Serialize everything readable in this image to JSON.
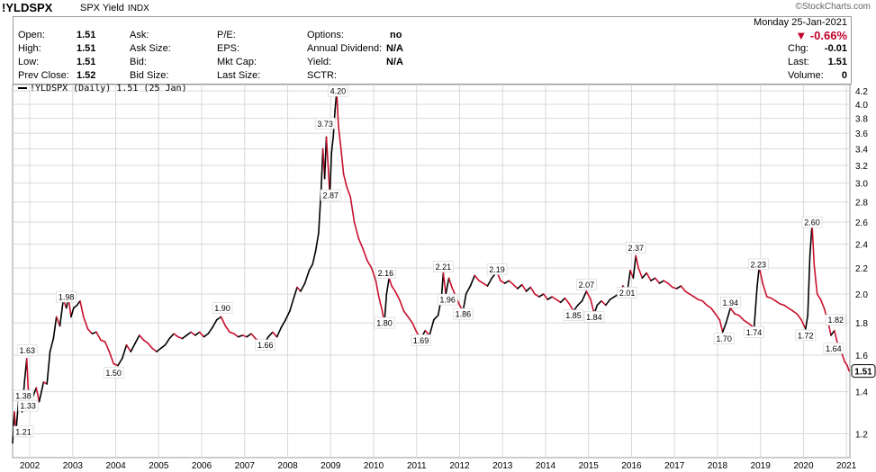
{
  "header": {
    "symbol": "!YLDSPX",
    "name": "SPX Yield",
    "type": "INDX",
    "brand": "©StockCharts.com",
    "date": "Monday  25-Jan-2021"
  },
  "quote": {
    "labels": {
      "open": "Open:",
      "high": "High:",
      "low": "Low:",
      "prev_close": "Prev Close:",
      "ask": "Ask:",
      "ask_size": "Ask Size:",
      "bid": "Bid:",
      "bid_size": "Bid Size:",
      "pe": "P/E:",
      "eps": "EPS:",
      "mkt_cap": "Mkt Cap:",
      "last_size": "Last Size:",
      "options": "Options:",
      "annual_dividend": "Annual Dividend:",
      "yield": "Yield:",
      "sctr": "SCTR:",
      "chg": "Chg:",
      "last": "Last:",
      "volume": "Volume:"
    },
    "values": {
      "open": "1.51",
      "high": "1.51",
      "low": "1.51",
      "prev_close": "1.52",
      "options": "no",
      "annual_dividend": "N/A",
      "yield": "N/A",
      "chg_pct": "▼ -0.66%",
      "chg": "-0.01",
      "last": "1.51",
      "volume": "0"
    }
  },
  "legend": "!YLDSPX (Daily) 1.51 (25 Jan)",
  "colors": {
    "up": "#000000",
    "down": "#c8102e",
    "grid": "#d9d9d9"
  },
  "chart_data": {
    "type": "line",
    "title": "!YLDSPX SPX Yield INDX",
    "scale": "log",
    "ylim": [
      1.1,
      4.3
    ],
    "xlim": [
      2001.6,
      2021.08
    ],
    "grid": true,
    "y_ticks": [
      1.2,
      1.4,
      1.6,
      1.8,
      2.0,
      2.2,
      2.4,
      2.6,
      2.8,
      3.0,
      3.2,
      3.4,
      3.6,
      3.8,
      4.0,
      4.2
    ],
    "x_ticks": [
      2002,
      2003,
      2004,
      2005,
      2006,
      2007,
      2008,
      2009,
      2010,
      2011,
      2012,
      2013,
      2014,
      2015,
      2016,
      2017,
      2018,
      2019,
      2020,
      2021
    ],
    "x_tick_labels": [
      "2002",
      "2003",
      "2004",
      "2005",
      "2006",
      "2007",
      "2008",
      "2009",
      "2010",
      "2011",
      "2012",
      "2013",
      "2014",
      "2015",
      "2016",
      "2017",
      "2018",
      "2019",
      "2020",
      "2021"
    ],
    "last_value": 1.51,
    "annotations": [
      {
        "x": 2001.62,
        "y": 1.38,
        "label": "1.38"
      },
      {
        "x": 2001.66,
        "y": 1.21,
        "label": "1.21"
      },
      {
        "x": 2001.94,
        "y": 1.63,
        "label": "1.63"
      },
      {
        "x": 2001.96,
        "y": 1.33,
        "label": "1.33"
      },
      {
        "x": 2002.85,
        "y": 1.98,
        "label": "1.98"
      },
      {
        "x": 2003.95,
        "y": 1.5,
        "label": "1.50"
      },
      {
        "x": 2006.48,
        "y": 1.9,
        "label": "1.90"
      },
      {
        "x": 2007.48,
        "y": 1.66,
        "label": "1.66"
      },
      {
        "x": 2008.87,
        "y": 3.73,
        "label": "3.73"
      },
      {
        "x": 2009.17,
        "y": 4.2,
        "label": "4.20"
      },
      {
        "x": 2009.0,
        "y": 2.87,
        "label": "2.87"
      },
      {
        "x": 2010.28,
        "y": 2.16,
        "label": "2.16"
      },
      {
        "x": 2010.25,
        "y": 1.8,
        "label": "1.80"
      },
      {
        "x": 2011.1,
        "y": 1.69,
        "label": "1.69"
      },
      {
        "x": 2011.62,
        "y": 2.21,
        "label": "2.21"
      },
      {
        "x": 2011.72,
        "y": 1.96,
        "label": "1.96"
      },
      {
        "x": 2012.08,
        "y": 1.86,
        "label": "1.86"
      },
      {
        "x": 2012.87,
        "y": 2.19,
        "label": "2.19"
      },
      {
        "x": 2014.95,
        "y": 2.07,
        "label": "2.07"
      },
      {
        "x": 2014.65,
        "y": 1.85,
        "label": "1.85"
      },
      {
        "x": 2015.13,
        "y": 1.84,
        "label": "1.84"
      },
      {
        "x": 2015.9,
        "y": 2.01,
        "label": "2.01"
      },
      {
        "x": 2016.1,
        "y": 2.37,
        "label": "2.37"
      },
      {
        "x": 2018.3,
        "y": 1.94,
        "label": "1.94"
      },
      {
        "x": 2018.15,
        "y": 1.7,
        "label": "1.70"
      },
      {
        "x": 2018.95,
        "y": 2.23,
        "label": "2.23"
      },
      {
        "x": 2018.85,
        "y": 1.74,
        "label": "1.74"
      },
      {
        "x": 2020.2,
        "y": 2.6,
        "label": "2.60"
      },
      {
        "x": 2020.05,
        "y": 1.72,
        "label": "1.72"
      },
      {
        "x": 2020.75,
        "y": 1.82,
        "label": "1.82"
      },
      {
        "x": 2020.7,
        "y": 1.64,
        "label": "1.64"
      }
    ],
    "series": [
      {
        "values": [
          [
            2001.6,
            1.16
          ],
          [
            2001.64,
            1.3
          ],
          [
            2001.68,
            1.21
          ],
          [
            2001.74,
            1.36
          ],
          [
            2001.82,
            1.3
          ],
          [
            2001.88,
            1.46
          ],
          [
            2001.93,
            1.58
          ],
          [
            2001.97,
            1.38
          ],
          [
            2002.05,
            1.36
          ],
          [
            2002.15,
            1.42
          ],
          [
            2002.22,
            1.35
          ],
          [
            2002.32,
            1.45
          ],
          [
            2002.4,
            1.44
          ],
          [
            2002.47,
            1.62
          ],
          [
            2002.55,
            1.7
          ],
          [
            2002.62,
            1.84
          ],
          [
            2002.7,
            1.78
          ],
          [
            2002.78,
            1.96
          ],
          [
            2002.85,
            1.9
          ],
          [
            2002.9,
            1.97
          ],
          [
            2002.96,
            1.84
          ],
          [
            2003.02,
            1.9
          ],
          [
            2003.1,
            1.92
          ],
          [
            2003.17,
            1.95
          ],
          [
            2003.25,
            1.84
          ],
          [
            2003.35,
            1.76
          ],
          [
            2003.45,
            1.73
          ],
          [
            2003.55,
            1.74
          ],
          [
            2003.65,
            1.69
          ],
          [
            2003.75,
            1.68
          ],
          [
            2003.85,
            1.62
          ],
          [
            2003.95,
            1.55
          ],
          [
            2004.05,
            1.54
          ],
          [
            2004.15,
            1.58
          ],
          [
            2004.25,
            1.66
          ],
          [
            2004.35,
            1.62
          ],
          [
            2004.45,
            1.67
          ],
          [
            2004.55,
            1.72
          ],
          [
            2004.65,
            1.69
          ],
          [
            2004.75,
            1.67
          ],
          [
            2004.85,
            1.64
          ],
          [
            2004.95,
            1.62
          ],
          [
            2005.05,
            1.64
          ],
          [
            2005.15,
            1.66
          ],
          [
            2005.25,
            1.7
          ],
          [
            2005.35,
            1.73
          ],
          [
            2005.45,
            1.71
          ],
          [
            2005.55,
            1.7
          ],
          [
            2005.65,
            1.72
          ],
          [
            2005.75,
            1.74
          ],
          [
            2005.85,
            1.72
          ],
          [
            2005.95,
            1.74
          ],
          [
            2006.05,
            1.71
          ],
          [
            2006.15,
            1.73
          ],
          [
            2006.25,
            1.77
          ],
          [
            2006.35,
            1.82
          ],
          [
            2006.45,
            1.84
          ],
          [
            2006.55,
            1.78
          ],
          [
            2006.65,
            1.74
          ],
          [
            2006.75,
            1.73
          ],
          [
            2006.85,
            1.71
          ],
          [
            2006.95,
            1.72
          ],
          [
            2007.05,
            1.71
          ],
          [
            2007.15,
            1.73
          ],
          [
            2007.25,
            1.7
          ],
          [
            2007.35,
            1.68
          ],
          [
            2007.45,
            1.67
          ],
          [
            2007.55,
            1.71
          ],
          [
            2007.65,
            1.74
          ],
          [
            2007.75,
            1.71
          ],
          [
            2007.85,
            1.77
          ],
          [
            2007.95,
            1.82
          ],
          [
            2008.05,
            1.88
          ],
          [
            2008.15,
            1.98
          ],
          [
            2008.22,
            2.05
          ],
          [
            2008.3,
            2.02
          ],
          [
            2008.4,
            2.08
          ],
          [
            2008.5,
            2.18
          ],
          [
            2008.58,
            2.23
          ],
          [
            2008.65,
            2.34
          ],
          [
            2008.72,
            2.5
          ],
          [
            2008.78,
            2.95
          ],
          [
            2008.82,
            3.4
          ],
          [
            2008.86,
            3.05
          ],
          [
            2008.9,
            3.55
          ],
          [
            2008.94,
            3.2
          ],
          [
            2008.98,
            2.87
          ],
          [
            2009.02,
            3.35
          ],
          [
            2009.06,
            3.55
          ],
          [
            2009.1,
            3.9
          ],
          [
            2009.14,
            4.2
          ],
          [
            2009.18,
            3.7
          ],
          [
            2009.24,
            3.4
          ],
          [
            2009.3,
            3.1
          ],
          [
            2009.38,
            2.95
          ],
          [
            2009.46,
            2.85
          ],
          [
            2009.55,
            2.6
          ],
          [
            2009.65,
            2.45
          ],
          [
            2009.75,
            2.36
          ],
          [
            2009.85,
            2.26
          ],
          [
            2009.95,
            2.2
          ],
          [
            2010.05,
            2.1
          ],
          [
            2010.12,
            1.98
          ],
          [
            2010.2,
            1.88
          ],
          [
            2010.25,
            1.8
          ],
          [
            2010.3,
            2.0
          ],
          [
            2010.36,
            2.12
          ],
          [
            2010.42,
            2.06
          ],
          [
            2010.5,
            2.02
          ],
          [
            2010.6,
            1.96
          ],
          [
            2010.7,
            1.88
          ],
          [
            2010.8,
            1.84
          ],
          [
            2010.9,
            1.8
          ],
          [
            2011.0,
            1.74
          ],
          [
            2011.1,
            1.7
          ],
          [
            2011.2,
            1.75
          ],
          [
            2011.3,
            1.72
          ],
          [
            2011.4,
            1.82
          ],
          [
            2011.5,
            1.85
          ],
          [
            2011.58,
            1.98
          ],
          [
            2011.62,
            2.16
          ],
          [
            2011.68,
            2.0
          ],
          [
            2011.75,
            2.12
          ],
          [
            2011.82,
            2.05
          ],
          [
            2011.9,
            1.99
          ],
          [
            2012.0,
            1.92
          ],
          [
            2012.08,
            1.88
          ],
          [
            2012.15,
            2.0
          ],
          [
            2012.25,
            2.06
          ],
          [
            2012.35,
            2.14
          ],
          [
            2012.45,
            2.1
          ],
          [
            2012.55,
            2.08
          ],
          [
            2012.65,
            2.06
          ],
          [
            2012.75,
            2.12
          ],
          [
            2012.87,
            2.17
          ],
          [
            2012.95,
            2.1
          ],
          [
            2013.05,
            2.08
          ],
          [
            2013.15,
            2.1
          ],
          [
            2013.25,
            2.07
          ],
          [
            2013.35,
            2.04
          ],
          [
            2013.45,
            2.07
          ],
          [
            2013.55,
            2.02
          ],
          [
            2013.65,
            2.05
          ],
          [
            2013.75,
            2.0
          ],
          [
            2013.85,
            1.98
          ],
          [
            2013.95,
            2.0
          ],
          [
            2014.05,
            1.96
          ],
          [
            2014.15,
            1.98
          ],
          [
            2014.25,
            1.96
          ],
          [
            2014.35,
            1.94
          ],
          [
            2014.45,
            1.97
          ],
          [
            2014.55,
            1.93
          ],
          [
            2014.65,
            1.88
          ],
          [
            2014.75,
            1.92
          ],
          [
            2014.85,
            1.95
          ],
          [
            2014.95,
            2.02
          ],
          [
            2015.05,
            1.96
          ],
          [
            2015.13,
            1.86
          ],
          [
            2015.2,
            1.92
          ],
          [
            2015.3,
            1.95
          ],
          [
            2015.4,
            1.92
          ],
          [
            2015.5,
            1.96
          ],
          [
            2015.6,
            1.98
          ],
          [
            2015.7,
            2.0
          ],
          [
            2015.8,
            2.06
          ],
          [
            2015.9,
            2.01
          ],
          [
            2015.97,
            2.18
          ],
          [
            2016.04,
            2.12
          ],
          [
            2016.1,
            2.3
          ],
          [
            2016.16,
            2.2
          ],
          [
            2016.25,
            2.12
          ],
          [
            2016.35,
            2.16
          ],
          [
            2016.45,
            2.1
          ],
          [
            2016.55,
            2.12
          ],
          [
            2016.65,
            2.08
          ],
          [
            2016.75,
            2.1
          ],
          [
            2016.85,
            2.08
          ],
          [
            2016.95,
            2.05
          ],
          [
            2017.05,
            2.04
          ],
          [
            2017.15,
            2.06
          ],
          [
            2017.25,
            2.02
          ],
          [
            2017.35,
            2.0
          ],
          [
            2017.45,
            1.98
          ],
          [
            2017.55,
            1.96
          ],
          [
            2017.65,
            1.95
          ],
          [
            2017.75,
            1.92
          ],
          [
            2017.85,
            1.9
          ],
          [
            2017.95,
            1.86
          ],
          [
            2018.05,
            1.82
          ],
          [
            2018.12,
            1.74
          ],
          [
            2018.2,
            1.8
          ],
          [
            2018.3,
            1.9
          ],
          [
            2018.4,
            1.86
          ],
          [
            2018.5,
            1.85
          ],
          [
            2018.6,
            1.82
          ],
          [
            2018.7,
            1.8
          ],
          [
            2018.8,
            1.78
          ],
          [
            2018.85,
            1.76
          ],
          [
            2018.92,
            2.05
          ],
          [
            2018.97,
            2.21
          ],
          [
            2019.05,
            2.08
          ],
          [
            2019.15,
            1.98
          ],
          [
            2019.25,
            1.97
          ],
          [
            2019.35,
            1.95
          ],
          [
            2019.45,
            1.93
          ],
          [
            2019.55,
            1.92
          ],
          [
            2019.65,
            1.9
          ],
          [
            2019.75,
            1.88
          ],
          [
            2019.85,
            1.86
          ],
          [
            2019.95,
            1.82
          ],
          [
            2020.05,
            1.76
          ],
          [
            2020.1,
            1.85
          ],
          [
            2020.15,
            2.3
          ],
          [
            2020.2,
            2.58
          ],
          [
            2020.25,
            2.22
          ],
          [
            2020.32,
            2.0
          ],
          [
            2020.4,
            1.96
          ],
          [
            2020.48,
            1.9
          ],
          [
            2020.56,
            1.82
          ],
          [
            2020.64,
            1.72
          ],
          [
            2020.72,
            1.75
          ],
          [
            2020.8,
            1.66
          ],
          [
            2020.88,
            1.62
          ],
          [
            2020.96,
            1.56
          ],
          [
            2021.02,
            1.54
          ],
          [
            2021.06,
            1.51
          ]
        ]
      }
    ]
  }
}
